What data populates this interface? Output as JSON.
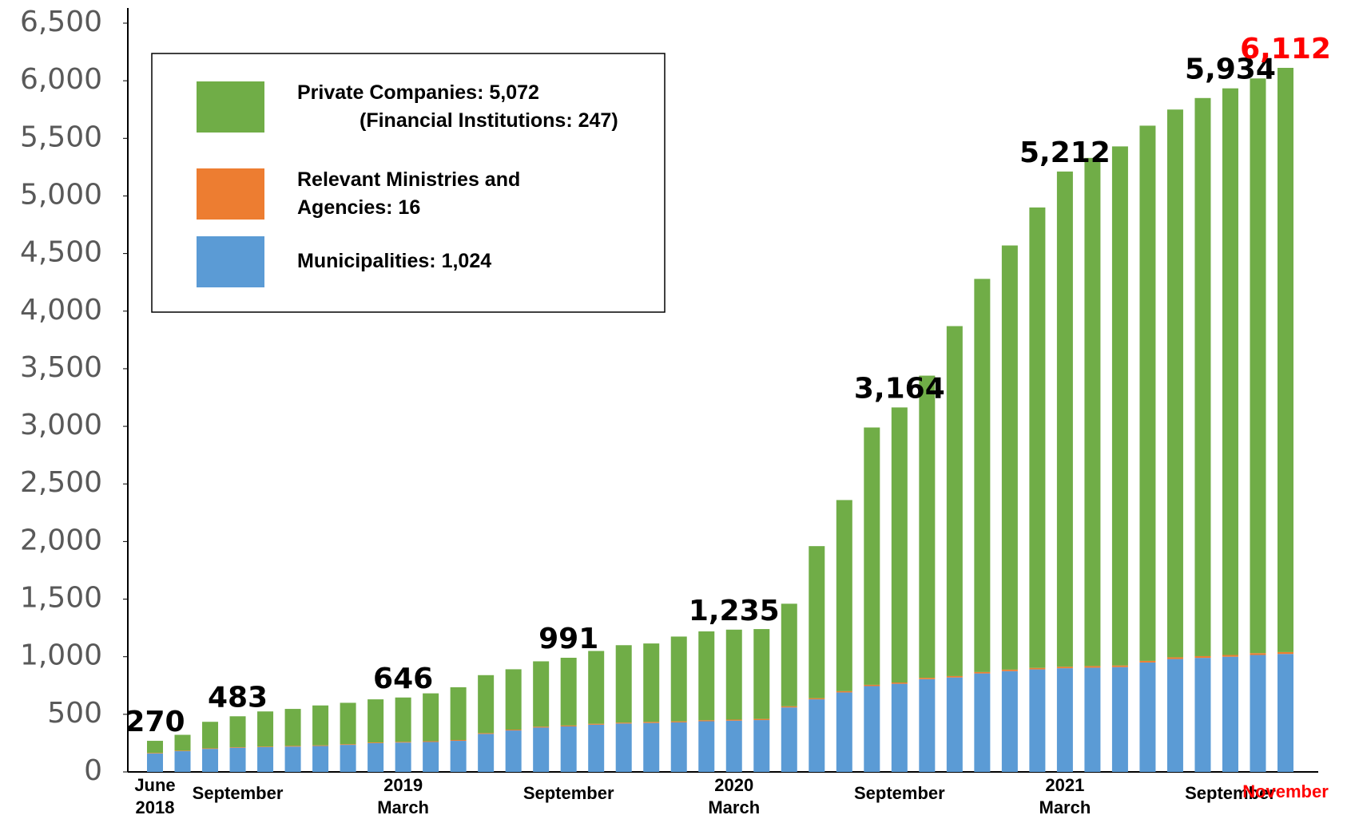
{
  "chart_data": {
    "type": "stacked_bar",
    "categories": [
      "June\n2018",
      null,
      null,
      "September",
      null,
      null,
      null,
      null,
      null,
      "2019\nMarch",
      null,
      null,
      null,
      null,
      null,
      "September",
      null,
      null,
      null,
      null,
      null,
      "2020\nMarch",
      null,
      null,
      null,
      null,
      null,
      "September",
      null,
      null,
      null,
      null,
      null,
      "2021\nMarch",
      null,
      null,
      null,
      null,
      null,
      "September",
      null,
      "November"
    ],
    "series": [
      {
        "name": "Municipalities: 1,024",
        "color": "#5b9bd5",
        "values": [
          160,
          180,
          200,
          210,
          215,
          220,
          225,
          235,
          250,
          255,
          260,
          270,
          330,
          360,
          385,
          395,
          410,
          420,
          425,
          430,
          440,
          445,
          450,
          560,
          630,
          690,
          745,
          765,
          805,
          820,
          855,
          875,
          890,
          900,
          905,
          910,
          950,
          980,
          990,
          1000,
          1015,
          1024
        ]
      },
      {
        "name": "Relevant Ministries and\nAgencies: 16",
        "color": "#ed7d31",
        "values": [
          5,
          5,
          5,
          5,
          5,
          6,
          6,
          6,
          6,
          6,
          7,
          7,
          7,
          7,
          8,
          8,
          8,
          8,
          9,
          9,
          9,
          9,
          10,
          10,
          10,
          11,
          11,
          11,
          12,
          12,
          12,
          13,
          13,
          13,
          14,
          14,
          14,
          15,
          15,
          15,
          16,
          16
        ]
      },
      {
        "name": "Private Companies: 5,072\n(Financial Institutions: 247)",
        "color": "#70ad47",
        "values": [
          105,
          137,
          230,
          268,
          305,
          321,
          346,
          359,
          374,
          385,
          415,
          458,
          503,
          524,
          567,
          588,
          632,
          672,
          681,
          736,
          771,
          781,
          780,
          890,
          1320,
          1659,
          2234,
          2388,
          2623,
          3038,
          3413,
          3682,
          3997,
          4299,
          4411,
          4506,
          4646,
          4755,
          4845,
          4919,
          4989,
          5072
        ]
      }
    ],
    "annotations": [
      {
        "index": 0,
        "text": "270"
      },
      {
        "index": 3,
        "text": "483"
      },
      {
        "index": 9,
        "text": "646"
      },
      {
        "index": 15,
        "text": "991"
      },
      {
        "index": 21,
        "text": "1,235"
      },
      {
        "index": 27,
        "text": "3,164"
      },
      {
        "index": 33,
        "text": "5,212"
      },
      {
        "index": 39,
        "text": "5,934"
      },
      {
        "index": 41,
        "text": "6,112",
        "color": "#ff0000"
      }
    ],
    "highlight_color": "#ff0000",
    "ylim": [
      0,
      6500
    ],
    "yticks": [
      0,
      500,
      {
        "value": 1000,
        "label": "1,000"
      },
      {
        "value": 1500,
        "label": "1,500"
      },
      {
        "value": 2000,
        "label": "2,000"
      },
      {
        "value": 2500,
        "label": "2,500"
      },
      {
        "value": 3000,
        "label": "3,000"
      },
      {
        "value": 3500,
        "label": "3,500"
      },
      {
        "value": 4000,
        "label": "4,000"
      },
      {
        "value": 4500,
        "label": "4,500"
      },
      {
        "value": 5000,
        "label": "5,000"
      },
      {
        "value": 5500,
        "label": "5,500"
      },
      {
        "value": 6000,
        "label": "6,000"
      },
      {
        "value": 6500,
        "label": "6,500"
      }
    ],
    "grid": false,
    "legend": "upper left"
  }
}
